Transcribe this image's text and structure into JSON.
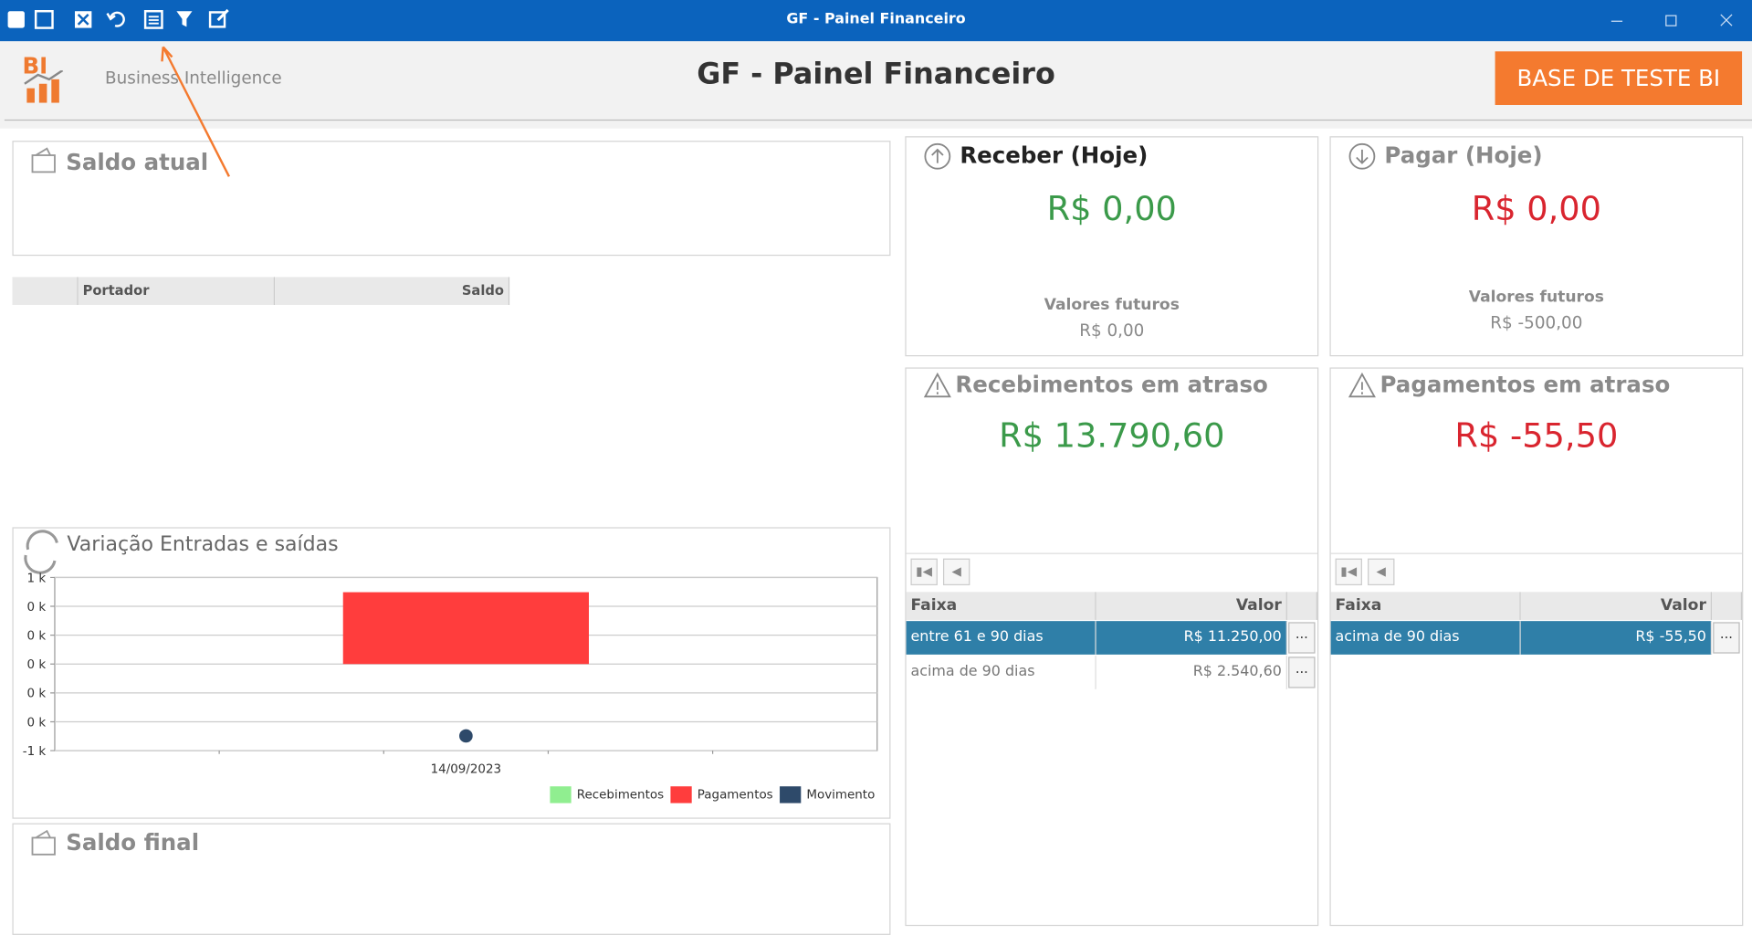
{
  "titlebar": {
    "title": "GF - Painel Financeiro"
  },
  "header": {
    "logo": "BI",
    "brand": "Business Intelligence",
    "title": "GF - Painel Financeiro",
    "button": "BASE DE TESTE BI"
  },
  "saldo_atual": {
    "title": "Saldo atual",
    "columns": [
      "Portador",
      "Saldo"
    ]
  },
  "receber": {
    "title": "Receber (Hoje)",
    "value": "R$ 0,00",
    "future_label": "Valores futuros",
    "future_value": "R$ 0,00"
  },
  "pagar": {
    "title": "Pagar (Hoje)",
    "value": "R$ 0,00",
    "future_label": "Valores futuros",
    "future_value": "R$ -500,00"
  },
  "recebimentos_atraso": {
    "title": "Recebimentos em atraso",
    "value": "R$ 13.790,60",
    "columns": [
      "Faixa",
      "Valor"
    ],
    "more": "···",
    "rows": [
      [
        "entre 61 e 90 dias",
        "R$ 11.250,00"
      ],
      [
        "acima de 90 dias",
        "R$ 2.540,60"
      ]
    ]
  },
  "pagamentos_atraso": {
    "title": "Pagamentos em atraso",
    "value": "R$ -55,50",
    "columns": [
      "Faixa",
      "Valor"
    ],
    "more": "···",
    "rows": [
      [
        "acima de 90 dias",
        "R$ -55,50"
      ]
    ]
  },
  "chart_data": {
    "type": "bar",
    "title": "Variação Entradas e saídas",
    "categories": [
      "14/09/2023"
    ],
    "series": [
      {
        "name": "Recebimentos",
        "color": "#90ee90",
        "values": [
          0
        ]
      },
      {
        "name": "Pagamentos",
        "color": "#ff3d3d",
        "values": [
          830
        ]
      },
      {
        "name": "Movimento",
        "color": "#2e4a6a",
        "type": "point",
        "values": [
          -830
        ]
      }
    ],
    "ylim": [
      -1000,
      1000
    ],
    "yticks": [
      {
        "value": 1000,
        "label": "1 k"
      },
      {
        "value": 666.67,
        "label": "0 k"
      },
      {
        "value": 333.33,
        "label": "0 k"
      },
      {
        "value": 0,
        "label": "0 k"
      },
      {
        "value": -333.33,
        "label": "0 k"
      },
      {
        "value": -666.67,
        "label": "0 k"
      },
      {
        "value": -1000,
        "label": "-1 k"
      }
    ],
    "grid": true
  },
  "saldo_final": {
    "title": "Saldo final"
  }
}
